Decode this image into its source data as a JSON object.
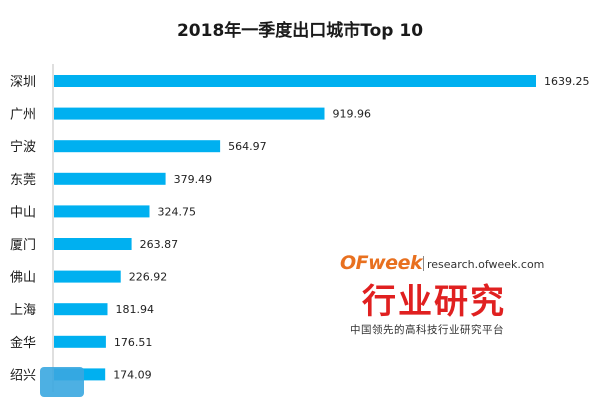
{
  "chart_data": {
    "type": "bar",
    "orientation": "horizontal",
    "title": "2018年一季度出口城市Top 10",
    "categories": [
      "深圳",
      "广州",
      "宁波",
      "东莞",
      "中山",
      "厦门",
      "佛山",
      "上海",
      "金华",
      "绍兴"
    ],
    "values": [
      1639.25,
      919.96,
      564.97,
      379.49,
      324.75,
      263.87,
      226.92,
      181.94,
      176.51,
      174.09
    ],
    "value_labels": [
      "1639.25",
      "919.96",
      "564.97",
      "379.49",
      "324.75",
      "263.87",
      "226.92",
      "181.94",
      "176.51",
      "174.09"
    ],
    "xlim": [
      0,
      1639.25
    ],
    "grid": false,
    "legend": "none",
    "bar_color": "#00b0f0"
  },
  "watermark": {
    "brand": "OFweek",
    "site": "research.ofweek.com",
    "headline": "行业研究",
    "tagline": "中国领先的高科技行业研究平台"
  }
}
